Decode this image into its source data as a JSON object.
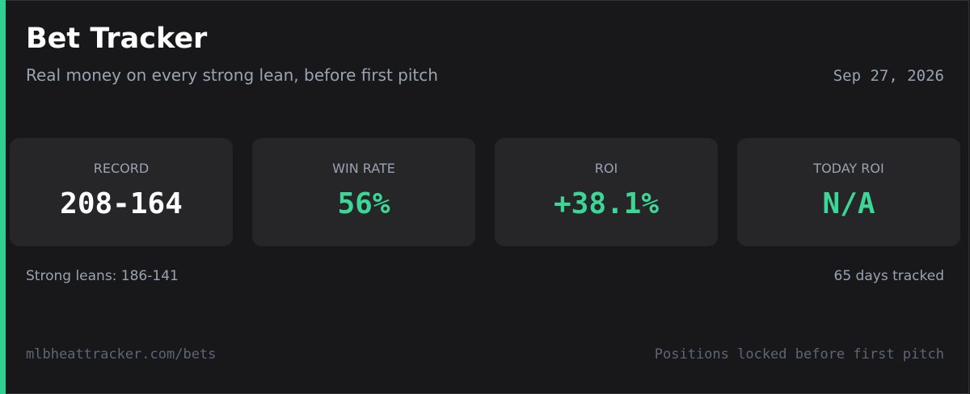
{
  "header": {
    "title": "Bet Tracker",
    "subtitle": "Real money on every strong lean, before first pitch",
    "date": "Sep 27, 2026"
  },
  "stats": [
    {
      "label": "RECORD",
      "value": "208-164"
    },
    {
      "label": "WIN RATE",
      "value": "56%"
    },
    {
      "label": "ROI",
      "value": "+38.1%"
    },
    {
      "label": "TODAY ROI",
      "value": "N/A"
    }
  ],
  "summary": {
    "left": "Strong leans: 186-141",
    "right": "65 days tracked"
  },
  "footer": {
    "left": "mlbheattracker.com/bets",
    "right": "Positions locked before first pitch"
  }
}
